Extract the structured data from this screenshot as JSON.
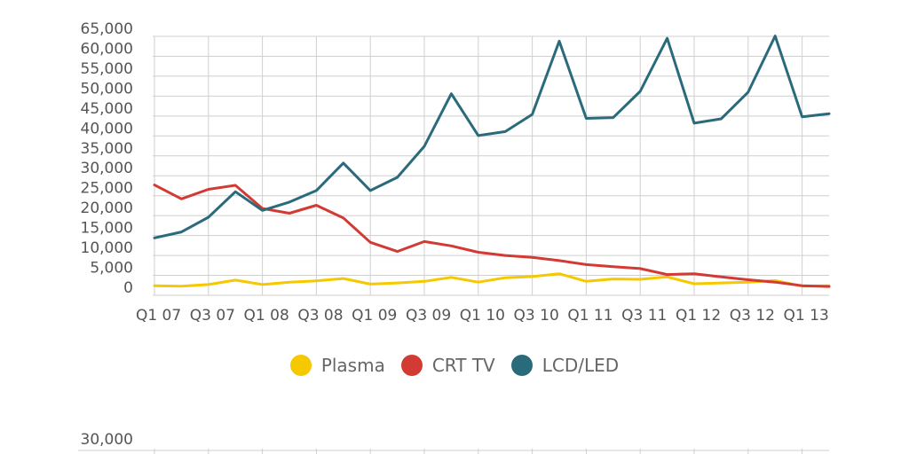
{
  "chart_data": [
    {
      "type": "line",
      "title": "",
      "xlabel": "",
      "ylabel": "",
      "ylim": [
        0,
        65000
      ],
      "grid": true,
      "legend": "bottom-center",
      "y_ticks": [
        "0",
        "5,000",
        "10,000",
        "15,000",
        "20,000",
        "25,000",
        "30,000",
        "35,000",
        "40,000",
        "45,000",
        "50,000",
        "55,000",
        "60,000",
        "65,000"
      ],
      "x_tick_labels": [
        "Q1 07",
        "Q3 07",
        "Q1 08",
        "Q3 08",
        "Q1 09",
        "Q3 09",
        "Q1 10",
        "Q3 10",
        "Q1 11",
        "Q3 11",
        "Q1 12",
        "Q3 12",
        "Q1 13"
      ],
      "series": [
        {
          "name": "Plasma",
          "color": "#F5C800",
          "values": [
            2400,
            2300,
            2700,
            3800,
            2700,
            3300,
            3600,
            4200,
            2800,
            3100,
            3500,
            4500,
            3300,
            4400,
            4700,
            5400,
            3500,
            4100,
            4000,
            4600,
            2900,
            3100,
            3300,
            3700,
            2300,
            2400
          ]
        },
        {
          "name": "CRT TV",
          "color": "#D23A34",
          "values": [
            27700,
            24200,
            26600,
            27600,
            21800,
            20600,
            22600,
            19400,
            13300,
            11000,
            13500,
            12400,
            10800,
            10000,
            9500,
            8700,
            7700,
            7200,
            6700,
            5200,
            5400,
            4600,
            3900,
            3300,
            2400,
            2200
          ]
        },
        {
          "name": "LCD/LED",
          "color": "#2A6B7B",
          "values": [
            14400,
            15900,
            19600,
            26000,
            21300,
            23400,
            26300,
            33200,
            26300,
            29600,
            37400,
            50600,
            40100,
            41100,
            45400,
            63800,
            44400,
            44600,
            51200,
            64500,
            43200,
            44300,
            51000,
            65100,
            44800,
            45600
          ]
        }
      ]
    },
    {
      "type": "line",
      "note": "second chart partially visible at bottom edge",
      "y_ticks": [
        "30,000"
      ]
    }
  ]
}
